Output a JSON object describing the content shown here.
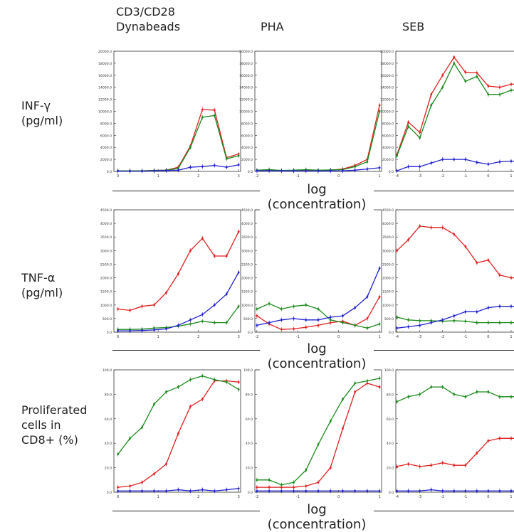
{
  "column_headers": [
    "CD3/CD28\nDynabeads",
    "PHA",
    "SEB"
  ],
  "row_labels": [
    "INF-γ\n(pg/ml)",
    "TNF-α\n(pg/ml)",
    "Proliferated\ncells in\nCD8+ (%)"
  ],
  "x_caption": "log (concentration)",
  "colors": {
    "red": "#e02020",
    "green": "#1a8a1a",
    "blue": "#2020d0"
  },
  "chart_data": [
    {
      "type": "line",
      "ylabel": "INF-γ (pg/ml)",
      "ylim": [
        0,
        20000
      ],
      "yticks": [
        "0.0",
        "2000.0",
        "4000.0",
        "6000.0",
        "8000.0",
        "10000.0",
        "12000.0",
        "14000.0",
        "16000.0",
        "18000.0",
        "20000.0"
      ],
      "panels": [
        {
          "col": "CD3/CD28 Dynabeads",
          "xlim": [
            -0.1,
            3.05
          ],
          "xticks": [
            "0",
            "1",
            "2",
            "3"
          ],
          "x": [
            0,
            0.3,
            0.6,
            0.9,
            1.2,
            1.5,
            1.8,
            2.1,
            2.4,
            2.7,
            3.0
          ],
          "series": [
            {
              "color": "red",
              "values": [
                100,
                100,
                100,
                150,
                200,
                700,
                4200,
                10300,
                10200,
                2300,
                2900
              ]
            },
            {
              "color": "green",
              "values": [
                100,
                100,
                100,
                150,
                200,
                500,
                4000,
                9000,
                9300,
                2100,
                2600
              ]
            },
            {
              "color": "blue",
              "values": [
                50,
                50,
                50,
                100,
                150,
                200,
                700,
                800,
                1000,
                700,
                1100
              ]
            }
          ]
        },
        {
          "col": "PHA",
          "xlim": [
            -2.05,
            1.05
          ],
          "xticks": [
            "-2",
            "-1",
            "0",
            "1"
          ],
          "x": [
            -2,
            -1.7,
            -1.4,
            -1.1,
            -0.8,
            -0.5,
            -0.2,
            0.1,
            0.4,
            0.7,
            1.0
          ],
          "series": [
            {
              "color": "red",
              "values": [
                100,
                200,
                100,
                100,
                200,
                100,
                200,
                400,
                1000,
                2000,
                11000
              ]
            },
            {
              "color": "green",
              "values": [
                200,
                300,
                150,
                200,
                300,
                200,
                250,
                300,
                800,
                1600,
                10000
              ]
            },
            {
              "color": "blue",
              "values": [
                100,
                100,
                100,
                80,
                80,
                80,
                80,
                100,
                200,
                400,
                600
              ]
            }
          ]
        },
        {
          "col": "SEB",
          "xlim": [
            -4.05,
            1.5
          ],
          "xticks": [
            "-4",
            "-3",
            "-2",
            "-1",
            "0",
            "1"
          ],
          "x": [
            -4,
            -3.5,
            -3,
            -2.5,
            -2,
            -1.5,
            -1,
            -0.5,
            0,
            0.5,
            1,
            1.5
          ],
          "series": [
            {
              "color": "red",
              "values": [
                2800,
                8200,
                6500,
                12800,
                16000,
                19000,
                16500,
                16400,
                14200,
                14000,
                14500,
                14600
              ]
            },
            {
              "color": "green",
              "values": [
                2600,
                7500,
                5600,
                11000,
                14000,
                18000,
                15000,
                15800,
                12800,
                12800,
                13500,
                13600
              ]
            },
            {
              "color": "blue",
              "values": [
                100,
                800,
                800,
                1400,
                2000,
                2000,
                2000,
                1500,
                1200,
                1600,
                1700,
                1700
              ]
            }
          ]
        }
      ]
    },
    {
      "type": "line",
      "ylabel": "TNF-α (pg/ml)",
      "ylim": [
        0,
        4500
      ],
      "yticks": [
        "0.0",
        "500.0",
        "1000.0",
        "1500.0",
        "2000.0",
        "2500.0",
        "3000.0",
        "3500.0",
        "4000.0",
        "4500.0"
      ],
      "panels": [
        {
          "col": "CD3/CD28 Dynabeads",
          "xlim": [
            -0.1,
            3.05
          ],
          "xticks": [
            "0",
            "1",
            "2",
            "3"
          ],
          "x": [
            0,
            0.3,
            0.6,
            0.9,
            1.2,
            1.5,
            1.8,
            2.1,
            2.4,
            2.7,
            3.0
          ],
          "series": [
            {
              "color": "red",
              "values": [
                850,
                800,
                950,
                1000,
                1450,
                2150,
                3000,
                3450,
                2800,
                2800,
                3700
              ]
            },
            {
              "color": "green",
              "values": [
                100,
                100,
                110,
                150,
                170,
                220,
                300,
                400,
                350,
                350,
                950
              ]
            },
            {
              "color": "blue",
              "values": [
                50,
                50,
                60,
                80,
                120,
                250,
                450,
                650,
                1000,
                1400,
                2200
              ]
            }
          ]
        },
        {
          "col": "PHA",
          "xlim": [
            -2.05,
            1.05
          ],
          "xticks": [
            "-2",
            "-1",
            "0",
            "1"
          ],
          "x": [
            -2,
            -1.7,
            -1.4,
            -1.1,
            -0.8,
            -0.5,
            -0.2,
            0.1,
            0.4,
            0.7,
            1.0
          ],
          "series": [
            {
              "color": "red",
              "values": [
                600,
                300,
                100,
                120,
                180,
                250,
                350,
                400,
                250,
                500,
                1300
              ]
            },
            {
              "color": "green",
              "values": [
                850,
                1050,
                850,
                950,
                1000,
                850,
                450,
                350,
                250,
                150,
                300
              ]
            },
            {
              "color": "blue",
              "values": [
                250,
                350,
                450,
                500,
                450,
                450,
                550,
                600,
                900,
                1300,
                2350
              ]
            }
          ]
        },
        {
          "col": "SEB",
          "xlim": [
            -4.05,
            1.5
          ],
          "xticks": [
            "-4",
            "-3",
            "-2",
            "-1",
            "0",
            "1"
          ],
          "x": [
            -4,
            -3.5,
            -3,
            -2.5,
            -2,
            -1.5,
            -1,
            -0.5,
            0,
            0.5,
            1,
            1.5
          ],
          "series": [
            {
              "color": "red",
              "values": [
                3000,
                3400,
                3900,
                3850,
                3850,
                3600,
                3150,
                2550,
                2650,
                2100,
                2000,
                2000
              ]
            },
            {
              "color": "green",
              "values": [
                550,
                450,
                420,
                420,
                400,
                420,
                400,
                350,
                350,
                350,
                350,
                350
              ]
            },
            {
              "color": "blue",
              "values": [
                150,
                200,
                250,
                350,
                450,
                600,
                750,
                750,
                900,
                950,
                950,
                950
              ]
            }
          ]
        }
      ]
    },
    {
      "type": "line",
      "ylabel": "Proliferated cells in CD8+ (%)",
      "ylim": [
        0,
        100
      ],
      "yticks": [
        "0.0",
        "20.0",
        "40.0",
        "60.0",
        "80.0",
        "100.0"
      ],
      "panels": [
        {
          "col": "CD3/CD28 Dynabeads",
          "xlim": [
            -0.1,
            3.05
          ],
          "xticks": [
            "0",
            "1",
            "2",
            "3"
          ],
          "x": [
            0,
            0.3,
            0.6,
            0.9,
            1.2,
            1.5,
            1.8,
            2.1,
            2.4,
            2.7,
            3.0
          ],
          "series": [
            {
              "color": "red",
              "values": [
                4,
                5,
                8,
                15,
                23,
                48,
                70,
                76,
                91,
                91,
                90
              ]
            },
            {
              "color": "green",
              "values": [
                31,
                44,
                53,
                72,
                82,
                86,
                92,
                95,
                92,
                90,
                84
              ]
            },
            {
              "color": "blue",
              "values": [
                1,
                1,
                1,
                1,
                1,
                2,
                1,
                2,
                1,
                2,
                3
              ]
            }
          ]
        },
        {
          "col": "PHA",
          "xlim": [
            -2.05,
            1.05
          ],
          "xticks": [
            "-2",
            "-1",
            "0",
            "1"
          ],
          "x": [
            -2,
            -1.7,
            -1.4,
            -1.1,
            -0.8,
            -0.5,
            -0.2,
            0.1,
            0.4,
            0.7,
            1.0
          ],
          "series": [
            {
              "color": "red",
              "values": [
                4,
                4,
                4,
                4,
                5,
                8,
                20,
                52,
                82,
                89,
                86
              ]
            },
            {
              "color": "green",
              "values": [
                10,
                10,
                6,
                8,
                18,
                39,
                58,
                76,
                89,
                91,
                93
              ]
            },
            {
              "color": "blue",
              "values": [
                1,
                1,
                1,
                1,
                1,
                1,
                1,
                1,
                1,
                1,
                1
              ]
            }
          ]
        },
        {
          "col": "SEB",
          "xlim": [
            -4.05,
            1.5
          ],
          "xticks": [
            "-4",
            "-3",
            "-2",
            "-1",
            "0",
            "1"
          ],
          "x": [
            -4,
            -3.5,
            -3,
            -2.5,
            -2,
            -1.5,
            -1,
            -0.5,
            0,
            0.5,
            1,
            1.5
          ],
          "series": [
            {
              "color": "red",
              "values": [
                21,
                23,
                21,
                22,
                24,
                22,
                22,
                32,
                42,
                44,
                44,
                44
              ]
            },
            {
              "color": "green",
              "values": [
                74,
                78,
                80,
                86,
                86,
                80,
                78,
                82,
                82,
                78,
                78,
                78
              ]
            },
            {
              "color": "blue",
              "values": [
                1,
                1,
                1,
                2,
                1,
                1,
                1,
                1,
                1,
                1,
                1,
                1
              ]
            }
          ]
        }
      ]
    }
  ]
}
